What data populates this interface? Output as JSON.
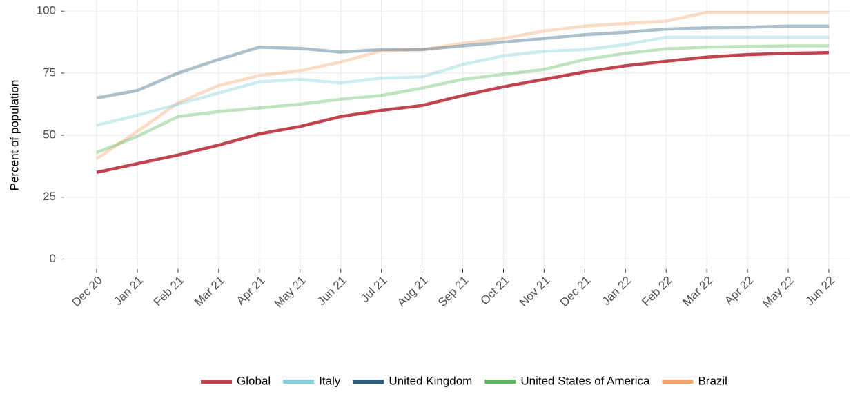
{
  "chart_data": {
    "type": "line",
    "y_label": "Percent of population",
    "categories": [
      "Dec 20",
      "Jan 21",
      "Feb 21",
      "Mar 21",
      "Apr 21",
      "May 21",
      "Jun 21",
      "Jul 21",
      "Aug 21",
      "Sep 21",
      "Oct 21",
      "Nov 21",
      "Dec 21",
      "Jan 22",
      "Feb 22",
      "Mar 22",
      "Apr 22",
      "May 22",
      "Jun 22"
    ],
    "series": [
      {
        "name": "Global",
        "color": "#c0444f",
        "opacity": 1,
        "values": [
          35,
          38.5,
          42,
          46,
          50.5,
          53.5,
          57.5,
          60,
          62,
          66,
          69.5,
          72.5,
          75.5,
          78,
          79.8,
          81.5,
          82.5,
          83,
          83.3
        ]
      },
      {
        "name": "Italy",
        "color": "#7fd0dc",
        "opacity": 0.4,
        "values": [
          54,
          58,
          62.5,
          67,
          71.5,
          72.5,
          71,
          73,
          73.5,
          78.5,
          82,
          83.8,
          84.5,
          86.5,
          89.5,
          89.5,
          89.5,
          89.5,
          89.5
        ]
      },
      {
        "name": "United Kingdom",
        "color": "#2c5f80",
        "opacity": 0.4,
        "values": [
          65,
          68,
          75,
          80.5,
          85.5,
          85,
          83.5,
          84.5,
          84.5,
          86,
          87.5,
          89,
          90.5,
          91.5,
          92.8,
          93.3,
          93.5,
          94,
          94
        ]
      },
      {
        "name": "United States of America",
        "color": "#5cb85c",
        "opacity": 0.4,
        "values": [
          43,
          49.5,
          57.5,
          59.5,
          61,
          62.5,
          64.5,
          66,
          69,
          72.5,
          74.5,
          76.5,
          80.5,
          83,
          84.8,
          85.5,
          85.8,
          86,
          86
        ]
      },
      {
        "name": "Brazil",
        "color": "#f7a46c",
        "opacity": 0.4,
        "values": [
          40.5,
          51.5,
          63,
          70,
          74,
          76,
          79.5,
          84,
          84.5,
          87,
          89,
          92,
          94,
          95,
          96,
          99.5,
          99.5,
          99.5,
          99.5
        ]
      }
    ],
    "ylim": [
      -4,
      104.5
    ],
    "yticks": [
      0,
      25,
      50,
      75,
      100
    ],
    "grid": true,
    "legend": "bottom"
  }
}
